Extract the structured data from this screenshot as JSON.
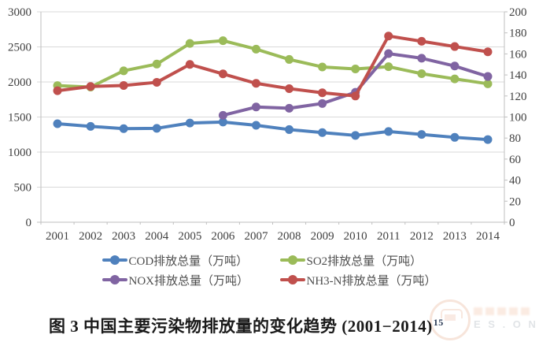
{
  "chart_data": {
    "type": "line",
    "title": "图 3 中国主要污染物排放量的变化趋势 (2001−2014)",
    "x": [
      "2001",
      "2002",
      "2003",
      "2004",
      "2005",
      "2006",
      "2007",
      "2008",
      "2009",
      "2010",
      "2011",
      "2012",
      "2013",
      "2014"
    ],
    "left_axis": {
      "min": 0,
      "max": 3000,
      "ticks": [
        0,
        500,
        1000,
        1500,
        2000,
        2500,
        3000
      ]
    },
    "right_axis": {
      "min": 0,
      "max": 200,
      "ticks": [
        0,
        20,
        40,
        60,
        80,
        100,
        120,
        140,
        160,
        180,
        200
      ]
    },
    "grid": "horizontal-on",
    "legend_position": "bottom",
    "series": [
      {
        "name": "COD排放总量（万吨）",
        "color": "#4F81BD",
        "axis": "left",
        "values": [
          1405,
          1367,
          1334,
          1339,
          1414,
          1428,
          1382,
          1321,
          1278,
          1238,
          1294,
          1251,
          1210,
          1179
        ]
      },
      {
        "name": "SO2排放总量（万吨）",
        "color": "#9BBB59",
        "axis": "left",
        "values": [
          1948,
          1927,
          2159,
          2255,
          2549,
          2589,
          2468,
          2321,
          2214,
          2185,
          2218,
          2118,
          2044,
          1974
        ]
      },
      {
        "name": "NOX排放总量（万吨）",
        "color": "#8064A2",
        "axis": "left",
        "values": [
          null,
          null,
          null,
          null,
          null,
          1524,
          1643,
          1625,
          1693,
          1852,
          2404,
          2338,
          2227,
          2078
        ]
      },
      {
        "name": "NH3-N排放总量（万吨）",
        "color": "#C0504D",
        "axis": "right",
        "values": [
          125,
          129,
          130,
          133,
          150,
          141,
          132,
          127,
          123,
          120,
          177,
          172,
          167,
          162
        ]
      }
    ]
  },
  "footnote": {
    "ref": "15"
  },
  "watermark": {
    "letters": "E S . O N"
  },
  "style_colors": {
    "gridline": "#d9d9d9",
    "axis_line": "#bfbfbf",
    "axis_label": "#404040"
  }
}
